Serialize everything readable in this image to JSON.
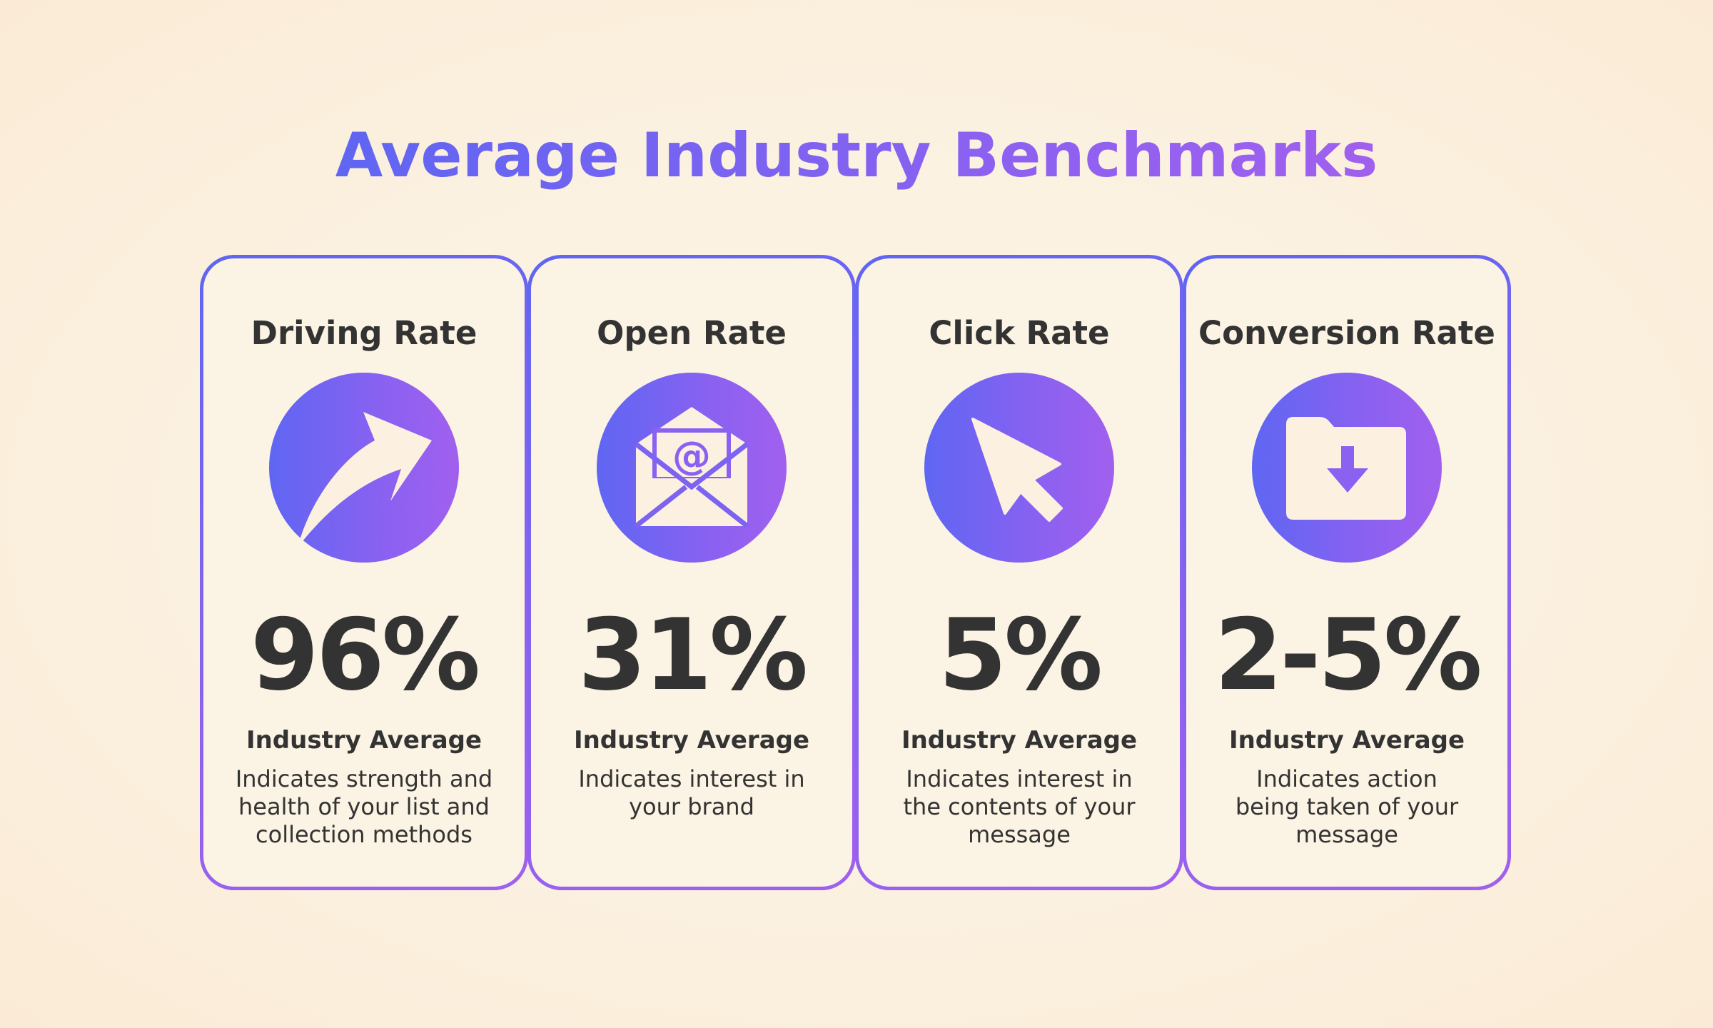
{
  "title": "Average Industry Benchmarks",
  "colors": {
    "gradient_start": "#5f66f2",
    "gradient_end": "#a160ee",
    "card_fill": "#fbf3e3",
    "text": "#333333",
    "icon_fill": "#fcf1e1"
  },
  "cards": [
    {
      "title": "Driving Rate",
      "icon": "trending-up-arrow-icon",
      "value": "96%",
      "subtitle": "Industry Average",
      "description_lines": [
        "Indicates strength and",
        "health of your list and",
        "collection methods"
      ]
    },
    {
      "title": "Open Rate",
      "icon": "email-envelope-icon",
      "value": "31%",
      "subtitle": "Industry Average",
      "description_lines": [
        "Indicates interest in",
        "your brand"
      ]
    },
    {
      "title": "Click Rate",
      "icon": "cursor-pointer-icon",
      "value": "5%",
      "subtitle": "Industry Average",
      "description_lines": [
        "Indicates interest in",
        "the contents of your",
        "message"
      ]
    },
    {
      "title": "Conversion Rate",
      "icon": "folder-download-icon",
      "value": "2-5%",
      "subtitle": "Industry Average",
      "description_lines": [
        "Indicates action",
        "being taken of your",
        "message"
      ]
    }
  ]
}
